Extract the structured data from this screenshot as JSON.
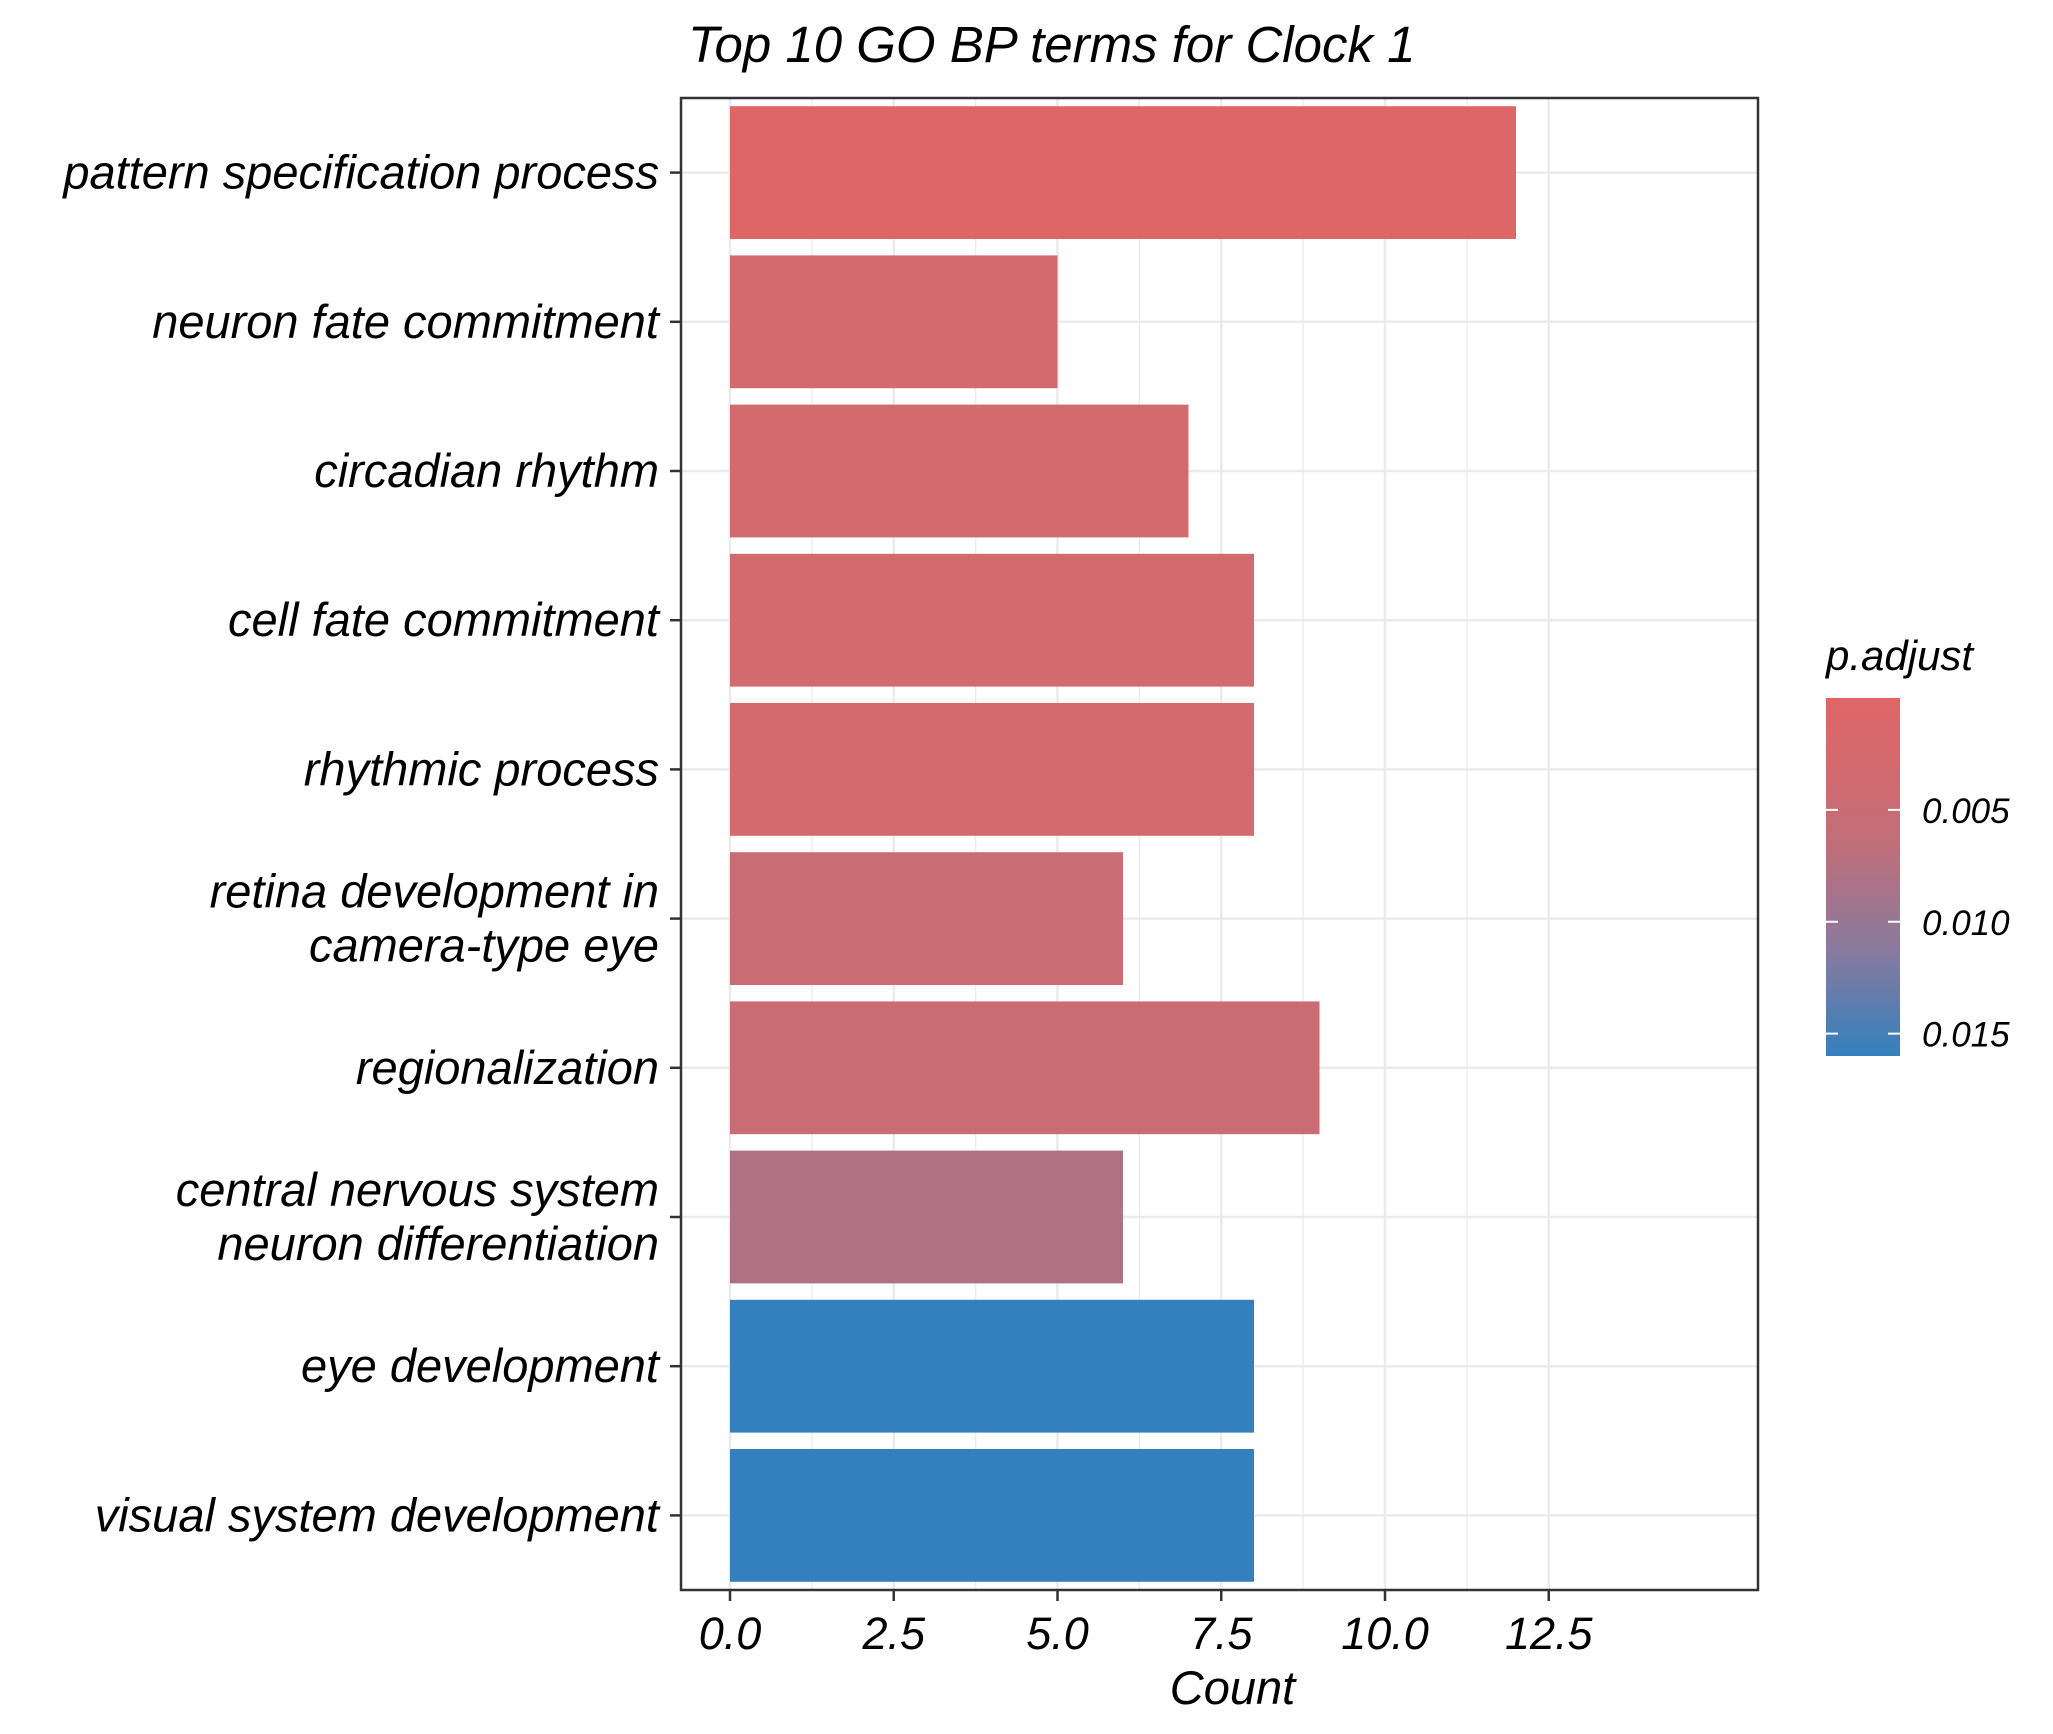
{
  "chart_data": {
    "type": "bar",
    "orientation": "horizontal",
    "title": "Top 10 GO BP terms for Clock 1",
    "xlabel": "Count",
    "ylabel": "",
    "xlim": [
      0,
      12.5
    ],
    "x_ticks": [
      "0.0",
      "2.5",
      "5.0",
      "7.5",
      "10.0",
      "12.5"
    ],
    "grid": true,
    "categories": [
      [
        "pattern specification process"
      ],
      [
        "neuron fate commitment"
      ],
      [
        "circadian rhythm"
      ],
      [
        "cell fate commitment"
      ],
      [
        "rhythmic process"
      ],
      [
        "retina development in",
        "camera-type eye"
      ],
      [
        "regionalization"
      ],
      [
        "central nervous system",
        "neuron differentiation"
      ],
      [
        "eye development"
      ],
      [
        "visual system development"
      ]
    ],
    "values": [
      12,
      5,
      7,
      8,
      8,
      6,
      9,
      6,
      8,
      8
    ],
    "p_adjust": [
      0.0002,
      0.003,
      0.003,
      0.003,
      0.003,
      0.005,
      0.005,
      0.008,
      0.016,
      0.016
    ],
    "legend": {
      "title": "p.adjust",
      "position": "right",
      "ticks": [
        "0.005",
        "0.010",
        "0.015"
      ],
      "tick_values": [
        0.005,
        0.01,
        0.015
      ],
      "range": [
        0.0,
        0.016
      ],
      "color_low_value": "#E06666",
      "color_high_value": "#3480BE"
    }
  }
}
